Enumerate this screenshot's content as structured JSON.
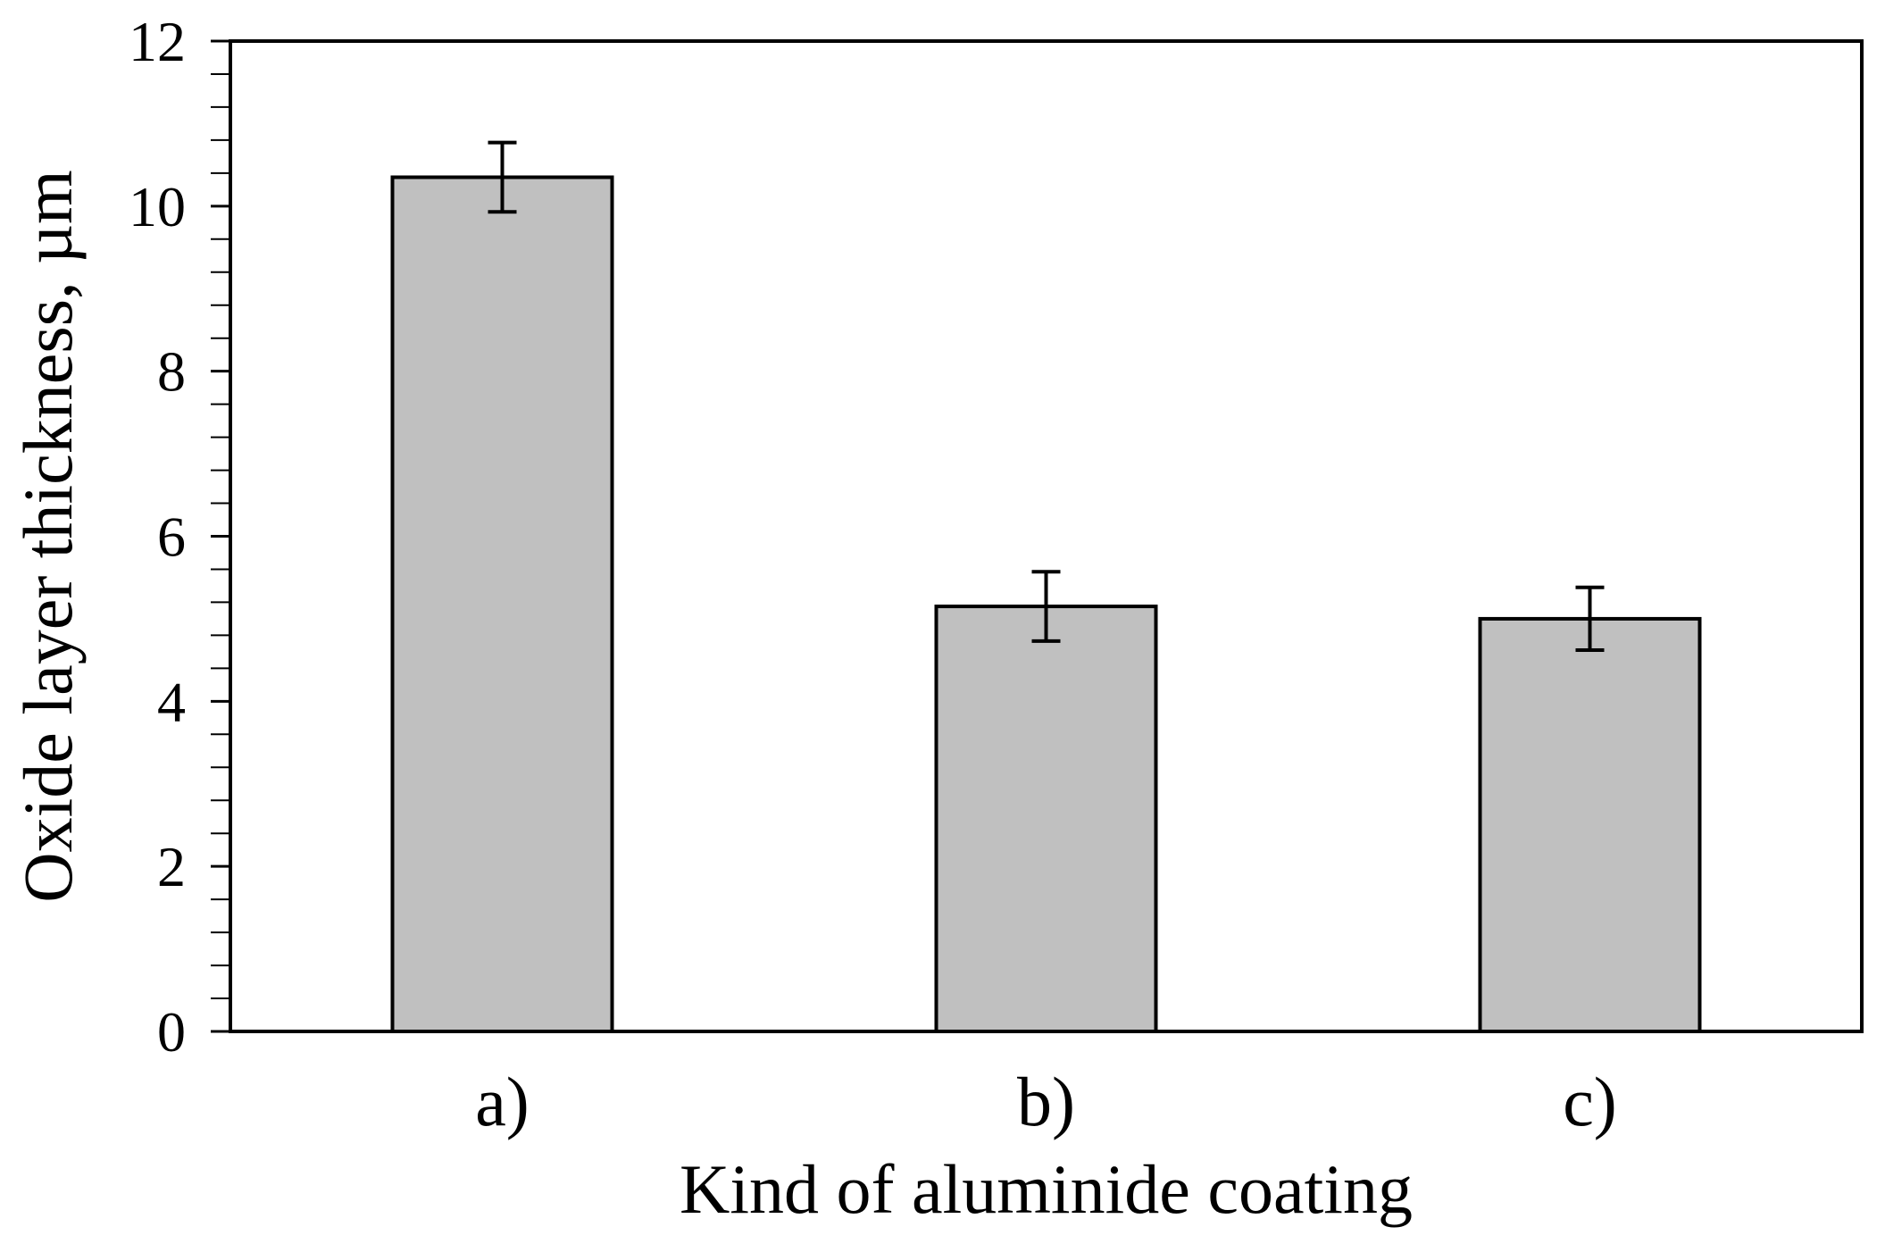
{
  "chart_data": {
    "type": "bar",
    "categories": [
      "a)",
      "b)",
      "c)"
    ],
    "values": [
      10.35,
      5.15,
      5.0
    ],
    "errors": [
      0.42,
      0.42,
      0.38
    ],
    "title": "",
    "xlabel": "Kind of aluminide coating",
    "ylabel": "Oxide layer thickness, µm",
    "ylim": [
      0,
      12
    ],
    "yticks": [
      "0",
      "2",
      "4",
      "6",
      "8",
      "10",
      "12"
    ],
    "grid": false,
    "legend": "none",
    "bar_color": "#c0c0c0",
    "edge_color": "#000000"
  }
}
